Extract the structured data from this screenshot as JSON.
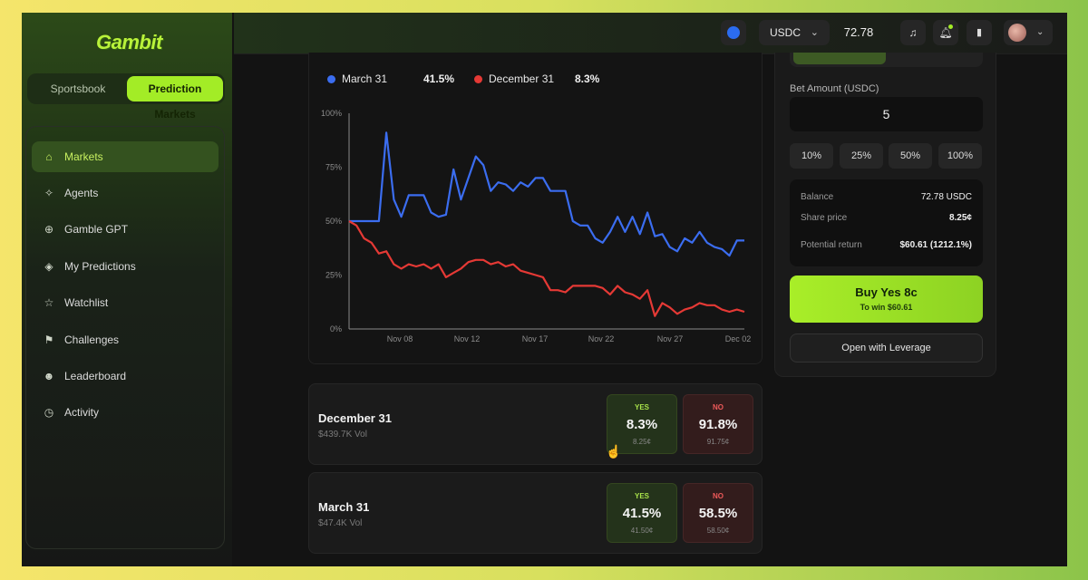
{
  "app": {
    "logo": "Gambit"
  },
  "switcher": {
    "sportsbook": "Sportsbook",
    "prediction": "Prediction Markets"
  },
  "sidebar": {
    "items": [
      {
        "label": "Markets",
        "icon": "home-icon",
        "active": true
      },
      {
        "label": "Agents",
        "icon": "sparkle-icon"
      },
      {
        "label": "Gamble GPT",
        "icon": "globe-icon"
      },
      {
        "label": "My Predictions",
        "icon": "crystal-icon"
      },
      {
        "label": "Watchlist",
        "icon": "star-icon"
      },
      {
        "label": "Challenges",
        "icon": "flag-icon"
      },
      {
        "label": "Leaderboard",
        "icon": "users-icon"
      },
      {
        "label": "Activity",
        "icon": "clock-icon"
      }
    ]
  },
  "topbar": {
    "currency": "USDC",
    "balance": "72.78"
  },
  "chart": {
    "legend": [
      {
        "name": "March 31",
        "value": "41.5%",
        "color": "#3b6df0"
      },
      {
        "name": "December 31",
        "value": "8.3%",
        "color": "#e53935"
      }
    ]
  },
  "chart_data": {
    "type": "line",
    "ylim": [
      0,
      100
    ],
    "yticks": [
      "0%",
      "25%",
      "50%",
      "75%",
      "100%"
    ],
    "xticks": [
      "Nov 08",
      "Nov 12",
      "Nov 17",
      "Nov 22",
      "Nov 27",
      "Dec 02"
    ],
    "series": [
      {
        "name": "March 31",
        "color": "#3b6df0",
        "values": [
          50,
          50,
          50,
          50,
          50,
          91,
          60,
          52,
          62,
          62,
          62,
          54,
          52,
          53,
          74,
          60,
          70,
          80,
          76,
          64,
          68,
          67,
          64,
          68,
          66,
          70,
          70,
          64,
          64,
          64,
          50,
          48,
          48,
          42,
          40,
          45,
          52,
          45,
          52,
          44,
          54,
          43,
          44,
          38,
          36,
          42,
          40,
          45,
          40,
          38,
          37,
          34,
          41,
          41
        ]
      },
      {
        "name": "December 31",
        "color": "#e53935",
        "values": [
          50,
          48,
          42,
          40,
          35,
          36,
          30,
          28,
          30,
          29,
          30,
          28,
          30,
          24,
          26,
          28,
          31,
          32,
          32,
          30,
          31,
          29,
          30,
          27,
          26,
          25,
          24,
          18,
          18,
          17,
          20,
          20,
          20,
          20,
          19,
          16,
          20,
          17,
          16,
          14,
          18,
          6,
          12,
          10,
          7,
          9,
          10,
          12,
          11,
          11,
          9,
          8,
          9,
          8
        ]
      }
    ]
  },
  "markets": [
    {
      "title": "December 31",
      "vol": "$439.7K Vol",
      "yes": {
        "label": "YES",
        "pct": "8.3%",
        "cents": "8.25¢"
      },
      "no": {
        "label": "NO",
        "pct": "91.8%",
        "cents": "91.75¢"
      }
    },
    {
      "title": "March 31",
      "vol": "$47.4K Vol",
      "yes": {
        "label": "YES",
        "pct": "41.5%",
        "cents": "41.50¢"
      },
      "no": {
        "label": "NO",
        "pct": "58.5%",
        "cents": "58.50¢"
      }
    }
  ],
  "bet": {
    "amount_label": "Bet Amount (USDC)",
    "amount": "5",
    "quick": [
      "10%",
      "25%",
      "50%",
      "100%"
    ],
    "balance_label": "Balance",
    "balance_value": "72.78 USDC",
    "share_label": "Share price",
    "share_value": "8.25¢",
    "return_label": "Potential return",
    "return_value": "$60.61 (1212.1%)",
    "buy_label": "Buy Yes 8c",
    "buy_sub": "To win $60.61",
    "leverage_label": "Open with Leverage"
  }
}
